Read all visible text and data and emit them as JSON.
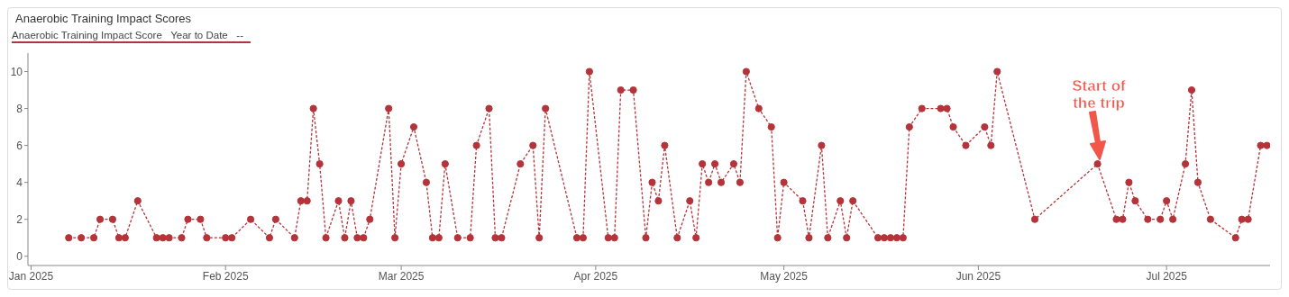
{
  "chart_data": {
    "type": "line",
    "title": "Anaerobic Training Impact Scores",
    "subtitle": "Anaerobic Training Impact Score   Year to Date   --",
    "x": [
      "2025-01-07",
      "2025-01-09",
      "2025-01-11",
      "2025-01-12",
      "2025-01-14",
      "2025-01-15",
      "2025-01-16",
      "2025-01-18",
      "2025-01-21",
      "2025-01-22",
      "2025-01-23",
      "2025-01-25",
      "2025-01-26",
      "2025-01-28",
      "2025-01-29",
      "2025-02-01",
      "2025-02-02",
      "2025-02-05",
      "2025-02-08",
      "2025-02-09",
      "2025-02-12",
      "2025-02-13",
      "2025-02-14",
      "2025-02-15",
      "2025-02-16",
      "2025-02-17",
      "2025-02-19",
      "2025-02-20",
      "2025-02-21",
      "2025-02-22",
      "2025-02-23",
      "2025-02-24",
      "2025-02-27",
      "2025-02-28",
      "2025-03-01",
      "2025-03-03",
      "2025-03-05",
      "2025-03-06",
      "2025-03-07",
      "2025-03-08",
      "2025-03-10",
      "2025-03-12",
      "2025-03-13",
      "2025-03-15",
      "2025-03-16",
      "2025-03-17",
      "2025-03-20",
      "2025-03-22",
      "2025-03-23",
      "2025-03-24",
      "2025-03-29",
      "2025-03-30",
      "2025-03-31",
      "2025-04-03",
      "2025-04-04",
      "2025-04-05",
      "2025-04-07",
      "2025-04-09",
      "2025-04-10",
      "2025-04-11",
      "2025-04-12",
      "2025-04-14",
      "2025-04-16",
      "2025-04-17",
      "2025-04-18",
      "2025-04-19",
      "2025-04-20",
      "2025-04-21",
      "2025-04-23",
      "2025-04-24",
      "2025-04-25",
      "2025-04-27",
      "2025-04-29",
      "2025-04-30",
      "2025-05-01",
      "2025-05-04",
      "2025-05-05",
      "2025-05-07",
      "2025-05-08",
      "2025-05-10",
      "2025-05-11",
      "2025-05-12",
      "2025-05-16",
      "2025-05-17",
      "2025-05-18",
      "2025-05-19",
      "2025-05-20",
      "2025-05-21",
      "2025-05-23",
      "2025-05-26",
      "2025-05-27",
      "2025-05-28",
      "2025-05-30",
      "2025-06-02",
      "2025-06-03",
      "2025-06-04",
      "2025-06-10",
      "2025-06-20",
      "2025-06-23",
      "2025-06-24",
      "2025-06-25",
      "2025-06-26",
      "2025-06-28",
      "2025-06-30",
      "2025-07-01",
      "2025-07-02",
      "2025-07-04",
      "2025-07-05",
      "2025-07-06",
      "2025-07-08",
      "2025-07-12",
      "2025-07-13",
      "2025-07-14",
      "2025-07-16",
      "2025-07-17"
    ],
    "series": [
      {
        "color": "#b5343a",
        "values": [
          1,
          1,
          1,
          2,
          2,
          1,
          1,
          3,
          1,
          1,
          1,
          1,
          2,
          2,
          1,
          1,
          1,
          2,
          1,
          2,
          1,
          3,
          3,
          8,
          5,
          1,
          3,
          1,
          3,
          1,
          1,
          2,
          8,
          1,
          5,
          7,
          4,
          1,
          1,
          5,
          1,
          1,
          6,
          8,
          1,
          1,
          5,
          6,
          1,
          8,
          1,
          1,
          10,
          1,
          1,
          9,
          9,
          1,
          4,
          3,
          6,
          1,
          3,
          1,
          5,
          4,
          5,
          4,
          5,
          4,
          10,
          8,
          7,
          1,
          4,
          3,
          1,
          6,
          1,
          3,
          1,
          3,
          1,
          1,
          1,
          1,
          1,
          7,
          8,
          8,
          8,
          7,
          6,
          7,
          6,
          10,
          2,
          5,
          2,
          2,
          4,
          3,
          2,
          2,
          3,
          2,
          5,
          9,
          4,
          2,
          1,
          2,
          2,
          6,
          6
        ]
      }
    ],
    "xlim": [
      "2024-12-31T12:00",
      "2025-07-17T12:00"
    ],
    "xticks": [
      {
        "value": "2025-01-01",
        "label": "Jan 2025"
      },
      {
        "value": "2025-02-01",
        "label": "Feb 2025"
      },
      {
        "value": "2025-03-01",
        "label": "Mar 2025"
      },
      {
        "value": "2025-04-01",
        "label": "Apr 2025"
      },
      {
        "value": "2025-05-01",
        "label": "May 2025"
      },
      {
        "value": "2025-06-01",
        "label": "Jun 2025"
      },
      {
        "value": "2025-07-01",
        "label": "Jul 2025"
      }
    ],
    "ylim": [
      -0.5,
      11
    ],
    "yticks": [
      0,
      2,
      4,
      6,
      8,
      10
    ],
    "grid": false,
    "marker": "circle",
    "line_style": "dashed",
    "annotations": [
      "Start of the trip"
    ]
  }
}
